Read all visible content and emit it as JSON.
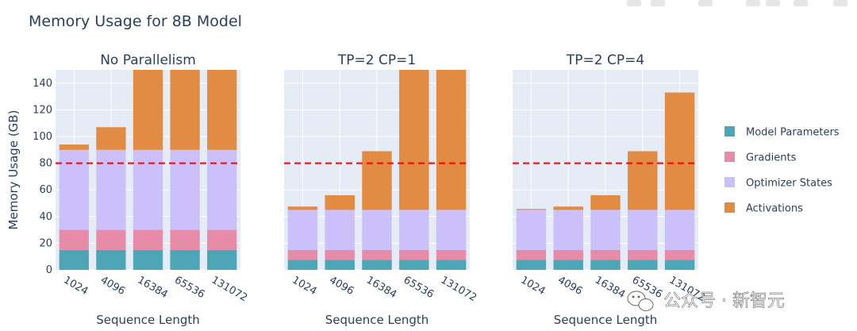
{
  "chart_data": {
    "type": "bar",
    "stacked": true,
    "title": "Memory Usage for 8B Model",
    "ylabel": "Memory Usage (GB)",
    "xlabel": "Sequence Length",
    "ylim": [
      0,
      150
    ],
    "yticks": [
      0,
      20,
      40,
      60,
      80,
      100,
      120,
      140
    ],
    "grid": true,
    "legend_placement": "right",
    "threshold_line": {
      "value": 80,
      "color": "#ff0000",
      "style": "dashed"
    },
    "categories": [
      "1024",
      "4096",
      "16384",
      "65536",
      "131072"
    ],
    "series_meta": [
      {
        "name": "Model Parameters",
        "color": "#4da6b5"
      },
      {
        "name": "Gradients",
        "color": "#e88ba8"
      },
      {
        "name": "Optimizer States",
        "color": "#ccc0fb"
      },
      {
        "name": "Activations",
        "color": "#e28b42"
      }
    ],
    "subplots": [
      {
        "title": "No Parallelism",
        "series": [
          {
            "name": "Model Parameters",
            "values": [
              15,
              15,
              15,
              15,
              15
            ]
          },
          {
            "name": "Gradients",
            "values": [
              15,
              15,
              15,
              15,
              15
            ]
          },
          {
            "name": "Optimizer States",
            "values": [
              60,
              60,
              60,
              60,
              60
            ]
          },
          {
            "name": "Activations",
            "values": [
              4,
              17,
              60,
              60,
              60
            ]
          }
        ]
      },
      {
        "title": "TP=2 CP=1",
        "series": [
          {
            "name": "Model Parameters",
            "values": [
              7.5,
              7.5,
              7.5,
              7.5,
              7.5
            ]
          },
          {
            "name": "Gradients",
            "values": [
              7.5,
              7.5,
              7.5,
              7.5,
              7.5
            ]
          },
          {
            "name": "Optimizer States",
            "values": [
              30,
              30,
              30,
              30,
              30
            ]
          },
          {
            "name": "Activations",
            "values": [
              2.5,
              11,
              44,
              105,
              105
            ]
          }
        ]
      },
      {
        "title": "TP=2 CP=4",
        "series": [
          {
            "name": "Model Parameters",
            "values": [
              7.5,
              7.5,
              7.5,
              7.5,
              7.5
            ]
          },
          {
            "name": "Gradients",
            "values": [
              7.5,
              7.5,
              7.5,
              7.5,
              7.5
            ]
          },
          {
            "name": "Optimizer States",
            "values": [
              30,
              30,
              30,
              30,
              30
            ]
          },
          {
            "name": "Activations",
            "values": [
              0.7,
              2.5,
              11,
              44,
              88
            ]
          }
        ]
      }
    ]
  },
  "watermark": {
    "text": "公众号 · 新智元",
    "icon": "wechat-icon"
  }
}
